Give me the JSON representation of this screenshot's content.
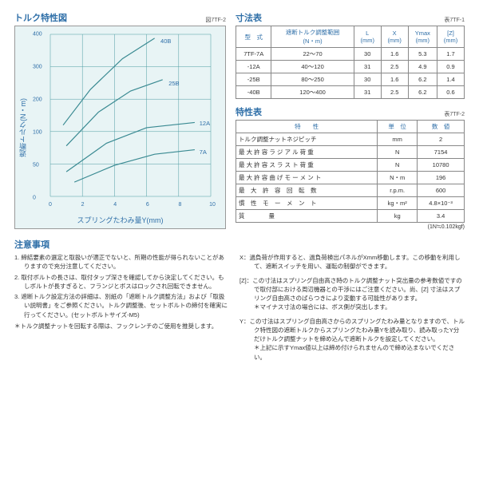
{
  "chart": {
    "title": "トルク特性図",
    "fig_label": "図7TF-2",
    "x_label": "スプリングたわみ量Y(mm)",
    "y_label": "遮断トルク(N・m)",
    "xlim": [
      0,
      10
    ],
    "ylim": [
      0,
      400
    ],
    "xticks": [
      0,
      2,
      4,
      6,
      8,
      10
    ],
    "yticks": [
      0,
      50,
      100,
      200,
      300,
      400
    ],
    "background": "#e8f4f5",
    "grid_color": "#4a9aa0",
    "axis_color": "#4a9aa0",
    "line_color": "#3a8a92",
    "line_width": 1.2,
    "series": [
      {
        "name": "40B",
        "points": [
          [
            0.8,
            120
          ],
          [
            2.5,
            230
          ],
          [
            4.5,
            325
          ],
          [
            6.5,
            388
          ]
        ],
        "label_at": [
          6.8,
          378
        ]
      },
      {
        "name": "25B",
        "points": [
          [
            1.0,
            78
          ],
          [
            3.0,
            160
          ],
          [
            5.0,
            225
          ],
          [
            7.0,
            260
          ]
        ],
        "label_at": [
          7.3,
          248
        ]
      },
      {
        "name": "12A",
        "points": [
          [
            1.0,
            38
          ],
          [
            3.5,
            82
          ],
          [
            6.0,
            112
          ],
          [
            9.0,
            128
          ]
        ],
        "label_at": [
          9.2,
          128
        ]
      },
      {
        "name": "7A",
        "points": [
          [
            1.5,
            22
          ],
          [
            4.0,
            48
          ],
          [
            6.5,
            65
          ],
          [
            9.0,
            72
          ]
        ],
        "label_at": [
          9.2,
          70
        ]
      }
    ]
  },
  "dim_table": {
    "title": "寸法表",
    "tbl_label": "表7TF-1",
    "headers": [
      "型　式",
      "遮断トルク調整範囲\n(N・m)",
      "L\n(mm)",
      "X\n(mm)",
      "Ymax\n(mm)",
      "[Z]\n(mm)"
    ],
    "rows": [
      [
        "7TF-7A",
        "22～70",
        "30",
        "1.6",
        "5.3",
        "1.7"
      ],
      [
        "-12A",
        "40～120",
        "31",
        "2.5",
        "4.9",
        "0.9"
      ],
      [
        "-25B",
        "80～250",
        "30",
        "1.6",
        "6.2",
        "1.4"
      ],
      [
        "-40B",
        "120～400",
        "31",
        "2.5",
        "6.2",
        "0.6"
      ]
    ]
  },
  "char_table": {
    "title": "特性表",
    "tbl_label": "表7TF-2",
    "headers": [
      "特　　性",
      "単　位",
      "数　値"
    ],
    "rows": [
      [
        "トルク調整ナットネジピッチ",
        "mm",
        "2"
      ],
      [
        "最 大 許 容 ラ ジ ア ル 荷 重",
        "N",
        "7154"
      ],
      [
        "最 大 許 容 ス ラ ス ト 荷 重",
        "N",
        "10780"
      ],
      [
        "最 大 許 容 曲 げ モ ー メ ン ト",
        "N・m",
        "196"
      ],
      [
        "最　大　許　容　回　転　数",
        "r.p.m.",
        "600"
      ],
      [
        "慣　性　モ　ー　メ　ン　ト",
        "kg・m²",
        "4.8×10⁻³"
      ],
      [
        "質　　　　量",
        "kg",
        "3.4"
      ]
    ],
    "unit_note": "(1N≒0.102kgf)"
  },
  "notes": {
    "title": "注意事項",
    "left_items": [
      "1. 締結要素の選定と取扱いが適正でないと、所期の性能が得られないことがありますので充分注意してください。",
      "2. 取付ボルトの長さは、取付タップ深さを確認してから決定してください。もしボルトが長すぎると、フランジとボスはロックされ回転できません。",
      "3. 遮断トルク設定方法の詳細は、別紙の「遮断トルク調整方法」および「取扱い説明書」をご参照ください。トルク調整後、セットボルトの締付を確実に行ってください。(セットボルトサイズ-M5)"
    ],
    "left_foot": "＊トルク調整ナットを回転する際は、フックレンチのご使用を推奨します。",
    "right_items": [
      {
        "k": "X：",
        "t": "過負荷が作用すると、過負荷検出パネルがXmm移動します。この移動を利用して、遮断スイッチを用い、運転の制御ができます。"
      },
      {
        "k": "[Z]：",
        "t": "この寸法はスプリング自由高さ時のトルク調整ナット突出量の参考数値ですので取付部における周辺機器との干渉にはご注意ください。尚、[Z] 寸法はスプリング自由高さのばらつきにより変動する可能性があります。\n＊マイナス寸法の場合には、ボス側が突出します。"
      },
      {
        "k": "Y：",
        "t": "この寸法はスプリング自由高さからのスプリングたわみ量となりますので、トルク特性図の遮断トルクからスプリングたわみ量Yを読み取り、読み取ったY分だけトルク調整ナットを締め込んで遮断トルクを設定してください。\n＊上記に示すYmax値以上は締め付けられませんので締め込まないでください。"
      }
    ]
  }
}
